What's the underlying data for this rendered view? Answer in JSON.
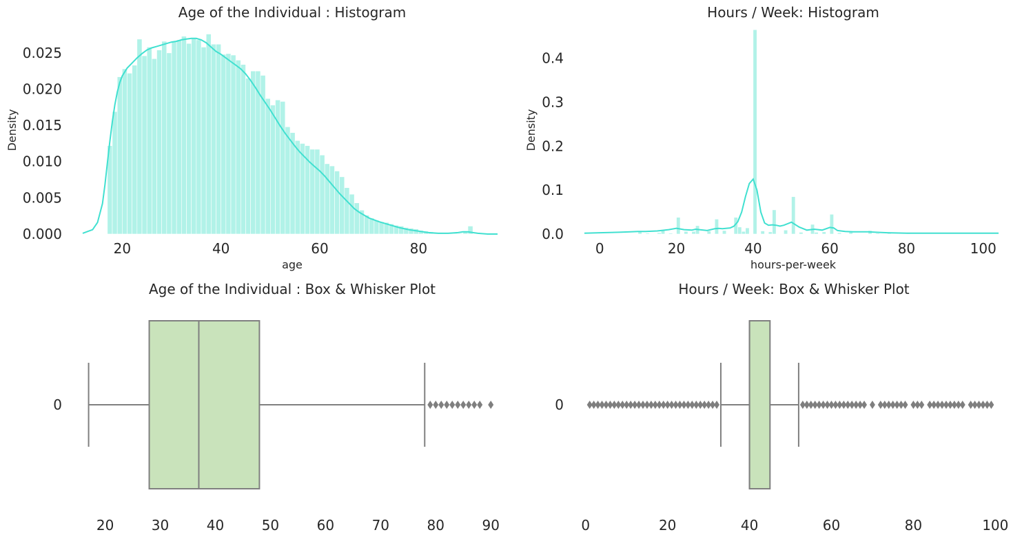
{
  "colors": {
    "hist_fill": "#b1f2e8",
    "kde_line": "#40e0d0",
    "box_fill": "#c9e3bb",
    "box_edge": "#7f7f7f",
    "flier": "#7f7f7f",
    "text": "#262626"
  },
  "chart_data": [
    {
      "id": "age-hist",
      "type": "histogram",
      "title": "Age of the Individual : Histogram",
      "xlabel": "age",
      "ylabel": "Density",
      "xlim": [
        12,
        96
      ],
      "ylim": [
        0,
        0.0285
      ],
      "xticks": [
        20,
        40,
        60,
        80
      ],
      "yticks": [
        0,
        0.005,
        0.01,
        0.015,
        0.02,
        0.025
      ],
      "ytick_labels": [
        "0.000",
        "0.005",
        "0.010",
        "0.015",
        "0.020",
        "0.025"
      ],
      "grid": false,
      "bin_width": 1,
      "bins_x": [
        17,
        18,
        19,
        20,
        21,
        22,
        23,
        24,
        25,
        26,
        27,
        28,
        29,
        30,
        31,
        32,
        33,
        34,
        35,
        36,
        37,
        38,
        39,
        40,
        41,
        42,
        43,
        44,
        45,
        46,
        47,
        48,
        49,
        50,
        51,
        52,
        53,
        54,
        55,
        56,
        57,
        58,
        59,
        60,
        61,
        62,
        63,
        64,
        65,
        66,
        67,
        68,
        69,
        70,
        71,
        72,
        73,
        74,
        75,
        76,
        77,
        78,
        79,
        80,
        81,
        82,
        83,
        84,
        85,
        86,
        87,
        88,
        89,
        90
      ],
      "bins_density": [
        0.0122,
        0.0169,
        0.0217,
        0.0228,
        0.0222,
        0.0233,
        0.0269,
        0.0246,
        0.0258,
        0.0242,
        0.0254,
        0.0266,
        0.025,
        0.0266,
        0.0268,
        0.0273,
        0.0263,
        0.0271,
        0.0268,
        0.0258,
        0.0276,
        0.0262,
        0.0262,
        0.0248,
        0.0249,
        0.0247,
        0.024,
        0.0234,
        0.0215,
        0.0225,
        0.0225,
        0.0219,
        0.0187,
        0.0178,
        0.0185,
        0.0183,
        0.0148,
        0.014,
        0.0129,
        0.0125,
        0.0122,
        0.0117,
        0.0117,
        0.0109,
        0.0097,
        0.0094,
        0.0087,
        0.0079,
        0.0064,
        0.0055,
        0.0043,
        0.0033,
        0.0026,
        0.0022,
        0.0019,
        0.0017,
        0.0016,
        0.0014,
        0.0012,
        0.0011,
        0.0009,
        0.0008,
        0.0007,
        0.0005,
        0.0004,
        0.0003,
        0.0002,
        0.0002,
        0.0001,
        0.0001,
        0.0001,
        0.0001,
        0.0003,
        0.0011
      ],
      "kde_x": [
        12,
        14,
        15,
        16,
        16.5,
        17,
        17.5,
        18,
        18.5,
        19,
        19.5,
        20,
        21,
        22,
        23,
        24,
        25,
        26,
        27,
        28,
        29,
        30,
        31,
        32,
        33,
        34,
        35,
        36,
        37,
        38,
        39,
        40,
        41,
        42,
        43,
        44,
        45,
        46,
        47,
        48,
        49,
        50,
        51,
        52,
        53,
        54,
        55,
        56,
        57,
        58,
        59,
        60,
        61,
        62,
        63,
        64,
        65,
        66,
        67,
        68,
        69,
        70,
        72,
        74,
        76,
        78,
        80,
        82,
        84,
        86,
        88,
        89,
        90,
        91,
        92,
        94,
        96
      ],
      "kde_y": [
        0.0001,
        0.0006,
        0.0016,
        0.0042,
        0.0068,
        0.0098,
        0.0128,
        0.0155,
        0.0178,
        0.0196,
        0.0209,
        0.0218,
        0.0229,
        0.0236,
        0.0243,
        0.0249,
        0.0254,
        0.0257,
        0.0259,
        0.0261,
        0.0263,
        0.0265,
        0.0266,
        0.0268,
        0.0269,
        0.027,
        0.027,
        0.0268,
        0.0264,
        0.0258,
        0.0252,
        0.0248,
        0.0243,
        0.0238,
        0.0233,
        0.0228,
        0.0221,
        0.0212,
        0.0202,
        0.0191,
        0.0181,
        0.0171,
        0.016,
        0.0149,
        0.0139,
        0.013,
        0.0121,
        0.0113,
        0.0106,
        0.0099,
        0.0093,
        0.0087,
        0.008,
        0.0072,
        0.0064,
        0.0056,
        0.0049,
        0.0042,
        0.0035,
        0.003,
        0.0026,
        0.0022,
        0.0017,
        0.0013,
        0.0009,
        0.0006,
        0.0004,
        0.0002,
        0.0001,
        0.0001,
        0.0002,
        0.0003,
        0.0003,
        0.0002,
        0.0001,
        0,
        0
      ]
    },
    {
      "id": "hours-hist",
      "type": "histogram",
      "title": "Hours / Week: Histogram",
      "xlabel": "hours-per-week",
      "ylabel": "Density",
      "xlim": [
        -4,
        104
      ],
      "ylim": [
        0,
        0.47
      ],
      "xticks": [
        0,
        20,
        40,
        60,
        80,
        100
      ],
      "yticks": [
        0,
        0.1,
        0.2,
        0.3,
        0.4
      ],
      "ytick_labels": [
        "0.0",
        "0.1",
        "0.2",
        "0.3",
        "0.4"
      ],
      "grid": false,
      "bin_width": 0.98,
      "bins_x": [
        10,
        12,
        15,
        16,
        18,
        20,
        22,
        24,
        25,
        28,
        30,
        32,
        35,
        36,
        37,
        38,
        40,
        42,
        44,
        45,
        48,
        50,
        52,
        55,
        56,
        58,
        60,
        62,
        65,
        70,
        72,
        75,
        80,
        84,
        90,
        99
      ],
      "bins_density": [
        0.006,
        0.002,
        0.003,
        0.009,
        0.002,
        0.038,
        0.006,
        0.006,
        0.019,
        0.007,
        0.034,
        0.008,
        0.038,
        0.016,
        0.006,
        0.014,
        0.465,
        0.007,
        0.005,
        0.055,
        0.009,
        0.085,
        0.004,
        0.022,
        0.004,
        0.005,
        0.045,
        0.003,
        0.007,
        0.008,
        0.002,
        0.002,
        0.002,
        0.001,
        0.001,
        0.001
      ],
      "kde_x": [
        -4,
        0,
        5,
        8,
        10,
        12,
        15,
        16,
        18,
        20,
        22,
        24,
        25,
        26,
        28,
        30,
        31,
        32,
        34,
        35,
        36,
        37,
        38,
        39,
        40,
        41,
        42,
        43,
        44,
        45,
        46,
        47,
        48,
        50,
        52,
        54,
        55,
        56,
        58,
        60,
        61,
        62,
        64,
        66,
        68,
        70,
        72,
        75,
        80,
        90,
        100,
        104
      ],
      "kde_y": [
        0.002,
        0.003,
        0.004,
        0.005,
        0.006,
        0.006,
        0.007,
        0.008,
        0.01,
        0.013,
        0.01,
        0.009,
        0.011,
        0.01,
        0.008,
        0.012,
        0.013,
        0.012,
        0.014,
        0.018,
        0.028,
        0.05,
        0.085,
        0.115,
        0.125,
        0.1,
        0.05,
        0.025,
        0.02,
        0.021,
        0.02,
        0.018,
        0.02,
        0.027,
        0.016,
        0.009,
        0.01,
        0.011,
        0.009,
        0.015,
        0.014,
        0.008,
        0.006,
        0.005,
        0.005,
        0.005,
        0.004,
        0.003,
        0.002,
        0.002,
        0.002,
        0.002
      ]
    },
    {
      "id": "age-box",
      "type": "box",
      "title": "Age of the Individual : Box & Whisker Plot",
      "category_label": "0",
      "xlim": [
        15.3,
        91.6
      ],
      "xticks": [
        20,
        30,
        40,
        50,
        60,
        70,
        80,
        90
      ],
      "whisker_low": 17,
      "q1": 28,
      "median": 37,
      "q3": 48,
      "whisker_high": 78,
      "fliers": [
        79,
        80,
        81,
        82,
        83,
        84,
        85,
        86,
        87,
        88,
        90
      ]
    },
    {
      "id": "hours-box",
      "type": "box",
      "title": "Hours / Week: Box & Whisker Plot",
      "category_label": "0",
      "xlim": [
        -0.8,
        101.8
      ],
      "xticks": [
        0,
        20,
        40,
        60,
        80,
        100
      ],
      "whisker_low": 33,
      "q1": 40,
      "median": 40,
      "q3": 45,
      "whisker_high": 52,
      "fliers": [
        1,
        2,
        3,
        4,
        5,
        6,
        7,
        8,
        9,
        10,
        11,
        12,
        13,
        14,
        15,
        16,
        17,
        18,
        19,
        20,
        21,
        22,
        23,
        24,
        25,
        26,
        27,
        28,
        29,
        30,
        31,
        32,
        53,
        54,
        55,
        56,
        57,
        58,
        59,
        60,
        61,
        62,
        63,
        64,
        65,
        66,
        67,
        68,
        70,
        72,
        73,
        74,
        75,
        76,
        77,
        78,
        80,
        81,
        82,
        84,
        85,
        86,
        87,
        88,
        89,
        90,
        91,
        92,
        94,
        95,
        96,
        97,
        98,
        99
      ]
    }
  ]
}
